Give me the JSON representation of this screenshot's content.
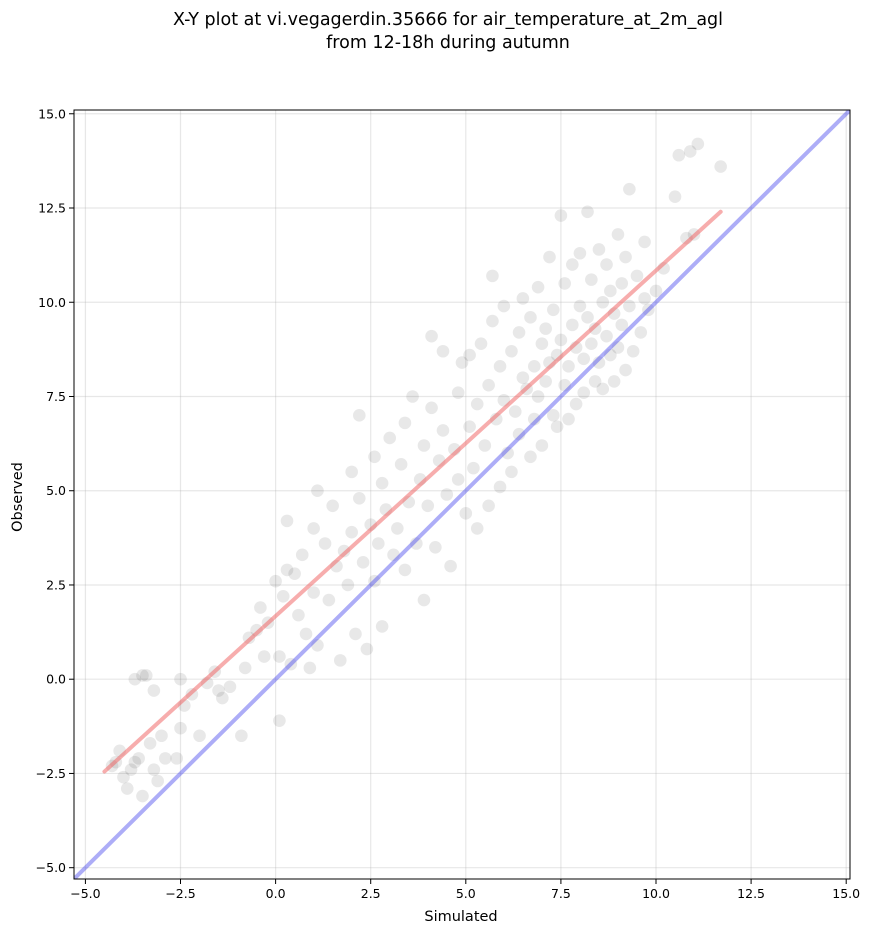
{
  "chart_data": {
    "type": "scatter",
    "title_line1": "X-Y plot at vi.vegagerdin.35666 for air_temperature_at_2m_agl",
    "title_line2": "from 12-18h during autumn",
    "xlabel": "Simulated",
    "ylabel": "Observed",
    "xlim": [
      -5.3,
      15.1
    ],
    "ylim": [
      -5.3,
      15.1
    ],
    "xticks": [
      -5.0,
      -2.5,
      0.0,
      2.5,
      5.0,
      7.5,
      10.0,
      12.5,
      15.0
    ],
    "yticks": [
      -5.0,
      -2.5,
      0.0,
      2.5,
      5.0,
      7.5,
      10.0,
      12.5,
      15.0
    ],
    "xtick_labels": [
      "−5.0",
      "−2.5",
      "0.0",
      "2.5",
      "5.0",
      "7.5",
      "10.0",
      "12.5",
      "15.0"
    ],
    "ytick_labels": [
      "−5.0",
      "−2.5",
      "0.0",
      "2.5",
      "5.0",
      "7.5",
      "10.0",
      "12.5",
      "15.0"
    ],
    "grid": true,
    "point_color": "#000000",
    "point_alpha": 0.09,
    "points": [
      [
        -4.3,
        -2.3
      ],
      [
        -4.2,
        -2.2
      ],
      [
        -4.1,
        -1.9
      ],
      [
        -4.0,
        -2.6
      ],
      [
        -3.9,
        -2.9
      ],
      [
        -3.8,
        -2.4
      ],
      [
        -3.7,
        -2.2
      ],
      [
        -3.6,
        -2.1
      ],
      [
        -3.5,
        -3.1
      ],
      [
        -3.4,
        0.1
      ],
      [
        -3.5,
        0.1
      ],
      [
        -3.7,
        0.0
      ],
      [
        -3.2,
        -0.3
      ],
      [
        -3.1,
        -2.7
      ],
      [
        -3.2,
        -2.4
      ],
      [
        -3.3,
        -1.7
      ],
      [
        -3.0,
        -1.5
      ],
      [
        -2.9,
        -2.1
      ],
      [
        -2.6,
        -2.1
      ],
      [
        -2.5,
        0.0
      ],
      [
        -2.4,
        -0.7
      ],
      [
        -2.5,
        -1.3
      ],
      [
        -2.2,
        -0.4
      ],
      [
        -2.0,
        -1.5
      ],
      [
        -1.8,
        -0.1
      ],
      [
        -1.6,
        0.2
      ],
      [
        -1.5,
        -0.3
      ],
      [
        -1.4,
        -0.5
      ],
      [
        -1.2,
        -0.2
      ],
      [
        -0.9,
        -1.5
      ],
      [
        -0.8,
        0.3
      ],
      [
        -0.7,
        1.1
      ],
      [
        -0.5,
        1.3
      ],
      [
        -0.4,
        1.9
      ],
      [
        -0.3,
        0.6
      ],
      [
        -0.2,
        1.5
      ],
      [
        0.0,
        2.6
      ],
      [
        0.1,
        0.6
      ],
      [
        0.1,
        -1.1
      ],
      [
        0.2,
        2.2
      ],
      [
        0.3,
        2.9
      ],
      [
        0.3,
        4.2
      ],
      [
        0.4,
        0.4
      ],
      [
        0.5,
        2.8
      ],
      [
        0.6,
        1.7
      ],
      [
        0.7,
        3.3
      ],
      [
        0.8,
        1.2
      ],
      [
        0.9,
        0.3
      ],
      [
        1.0,
        4.0
      ],
      [
        1.0,
        2.3
      ],
      [
        1.1,
        0.9
      ],
      [
        1.1,
        5.0
      ],
      [
        1.3,
        3.6
      ],
      [
        1.4,
        2.1
      ],
      [
        1.5,
        4.6
      ],
      [
        1.6,
        3.0
      ],
      [
        1.7,
        0.5
      ],
      [
        1.8,
        3.4
      ],
      [
        1.9,
        2.5
      ],
      [
        2.0,
        5.5
      ],
      [
        2.0,
        3.9
      ],
      [
        2.1,
        1.2
      ],
      [
        2.2,
        4.8
      ],
      [
        2.3,
        3.1
      ],
      [
        2.2,
        7.0
      ],
      [
        2.4,
        0.8
      ],
      [
        2.5,
        4.1
      ],
      [
        2.6,
        5.9
      ],
      [
        2.6,
        2.6
      ],
      [
        2.7,
        3.6
      ],
      [
        2.8,
        5.2
      ],
      [
        2.8,
        1.4
      ],
      [
        2.9,
        4.5
      ],
      [
        3.0,
        6.4
      ],
      [
        3.1,
        3.3
      ],
      [
        3.2,
        4.0
      ],
      [
        3.3,
        5.7
      ],
      [
        3.4,
        2.9
      ],
      [
        3.4,
        6.8
      ],
      [
        3.5,
        4.7
      ],
      [
        3.6,
        7.5
      ],
      [
        3.7,
        3.6
      ],
      [
        3.8,
        5.3
      ],
      [
        3.9,
        2.1
      ],
      [
        3.9,
        6.2
      ],
      [
        4.0,
        4.6
      ],
      [
        4.1,
        7.2
      ],
      [
        4.1,
        9.1
      ],
      [
        4.2,
        3.5
      ],
      [
        4.3,
        5.8
      ],
      [
        4.4,
        6.6
      ],
      [
        4.4,
        8.7
      ],
      [
        4.5,
        4.9
      ],
      [
        4.6,
        3.0
      ],
      [
        4.7,
        6.1
      ],
      [
        4.8,
        7.6
      ],
      [
        4.8,
        5.3
      ],
      [
        4.9,
        8.4
      ],
      [
        5.0,
        4.4
      ],
      [
        5.1,
        6.7
      ],
      [
        5.1,
        8.6
      ],
      [
        5.2,
        5.6
      ],
      [
        5.3,
        7.3
      ],
      [
        5.3,
        4.0
      ],
      [
        5.4,
        8.9
      ],
      [
        5.5,
        6.2
      ],
      [
        5.6,
        7.8
      ],
      [
        5.6,
        4.6
      ],
      [
        5.7,
        9.5
      ],
      [
        5.7,
        10.7
      ],
      [
        5.8,
        6.9
      ],
      [
        5.9,
        5.1
      ],
      [
        5.9,
        8.3
      ],
      [
        6.0,
        7.4
      ],
      [
        6.0,
        9.9
      ],
      [
        6.1,
        6.0
      ],
      [
        6.2,
        8.7
      ],
      [
        6.2,
        5.5
      ],
      [
        6.3,
        7.1
      ],
      [
        6.4,
        9.2
      ],
      [
        6.4,
        6.5
      ],
      [
        6.5,
        8.0
      ],
      [
        6.5,
        10.1
      ],
      [
        6.6,
        7.7
      ],
      [
        6.7,
        5.9
      ],
      [
        6.7,
        9.6
      ],
      [
        6.8,
        8.3
      ],
      [
        6.8,
        6.9
      ],
      [
        6.9,
        7.5
      ],
      [
        6.9,
        10.4
      ],
      [
        7.0,
        8.9
      ],
      [
        7.0,
        6.2
      ],
      [
        7.1,
        7.9
      ],
      [
        7.1,
        9.3
      ],
      [
        7.2,
        8.4
      ],
      [
        7.2,
        11.2
      ],
      [
        7.3,
        7.0
      ],
      [
        7.3,
        9.8
      ],
      [
        7.4,
        8.6
      ],
      [
        7.4,
        6.7
      ],
      [
        7.5,
        12.3
      ],
      [
        7.5,
        9.0
      ],
      [
        7.6,
        7.8
      ],
      [
        7.6,
        10.5
      ],
      [
        7.7,
        8.3
      ],
      [
        7.7,
        6.9
      ],
      [
        7.8,
        9.4
      ],
      [
        7.8,
        11.0
      ],
      [
        7.9,
        8.8
      ],
      [
        7.9,
        7.3
      ],
      [
        8.0,
        9.9
      ],
      [
        8.0,
        11.3
      ],
      [
        8.1,
        8.5
      ],
      [
        8.1,
        7.6
      ],
      [
        8.2,
        9.6
      ],
      [
        8.2,
        12.4
      ],
      [
        8.3,
        8.9
      ],
      [
        8.3,
        10.6
      ],
      [
        8.4,
        7.9
      ],
      [
        8.4,
        9.3
      ],
      [
        8.5,
        11.4
      ],
      [
        8.5,
        8.4
      ],
      [
        8.6,
        10.0
      ],
      [
        8.6,
        7.7
      ],
      [
        8.7,
        9.1
      ],
      [
        8.7,
        11.0
      ],
      [
        8.8,
        8.6
      ],
      [
        8.8,
        10.3
      ],
      [
        8.9,
        9.7
      ],
      [
        8.9,
        7.9
      ],
      [
        9.0,
        11.8
      ],
      [
        9.0,
        8.8
      ],
      [
        9.1,
        10.5
      ],
      [
        9.1,
        9.4
      ],
      [
        9.2,
        8.2
      ],
      [
        9.2,
        11.2
      ],
      [
        9.3,
        13.0
      ],
      [
        9.3,
        9.9
      ],
      [
        9.4,
        8.7
      ],
      [
        9.5,
        10.7
      ],
      [
        9.6,
        9.2
      ],
      [
        9.7,
        11.6
      ],
      [
        9.7,
        10.1
      ],
      [
        9.8,
        9.8
      ],
      [
        10.0,
        10.3
      ],
      [
        10.2,
        10.9
      ],
      [
        10.5,
        12.8
      ],
      [
        10.6,
        13.9
      ],
      [
        10.8,
        11.7
      ],
      [
        10.9,
        14.0
      ],
      [
        11.0,
        11.8
      ],
      [
        11.1,
        14.2
      ],
      [
        11.7,
        13.6
      ]
    ],
    "fit_line": {
      "color": "#ef5b5b",
      "alpha": 0.5,
      "x": [
        -4.5,
        11.7
      ],
      "y": [
        -2.45,
        12.4
      ]
    },
    "identity_line": {
      "color": "#4a4aee",
      "alpha": 0.45,
      "x": [
        -5.3,
        15.1
      ],
      "y": [
        -5.3,
        15.1
      ]
    }
  }
}
